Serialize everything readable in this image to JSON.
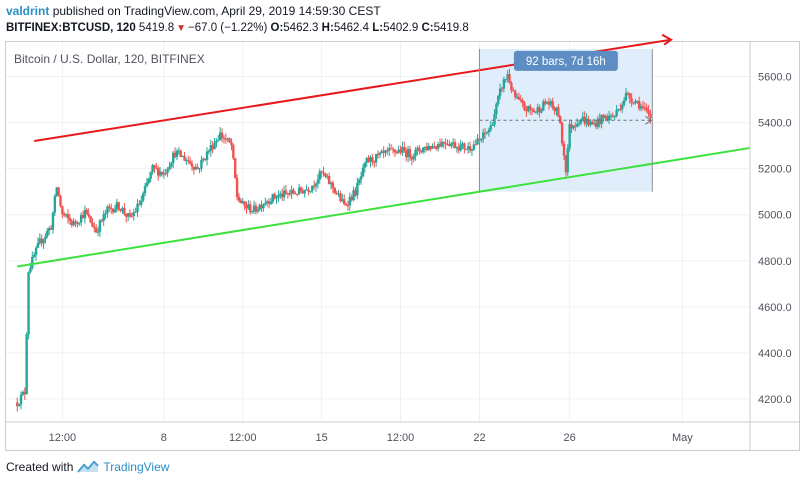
{
  "header": {
    "user": "valdrint",
    "published": "published on TradingView.com, April 29, 2019 14:59:30 CEST",
    "symbol": "BITFINEX:BTCUSD, 120",
    "last": "5419.8",
    "change": "−67.0 (−1.22%)",
    "open_label": "O:",
    "open": "5462.3",
    "high_label": "H:",
    "high": "5462.4",
    "low_label": "L:",
    "low": "5402.9",
    "close_label": "C:",
    "close": "5419.8"
  },
  "chart_title": "Bitcoin / U.S. Dollar, 120, BITFINEX",
  "measure_label": "92 bars, 7d 16h",
  "footer": {
    "created_with": "Created with",
    "brand": "TradingView"
  },
  "colors": {
    "up": "#26a69a",
    "down": "#ef5350",
    "upper_trend": "#e8191c",
    "lower_trend": "#3ce23c",
    "measure_bg": "#d6e8fb",
    "measure_label_bg": "#5e8dc4"
  },
  "chart_data": {
    "type": "candlestick",
    "title": "Bitcoin / U.S. Dollar, 120, BITFINEX",
    "x_domain": [
      "2019-04-01T00:00",
      "2019-05-04T00:00"
    ],
    "y_range": [
      4100,
      5750
    ],
    "y_ticks": [
      4200,
      4400,
      4600,
      4800,
      5000,
      5200,
      5400,
      5600
    ],
    "x_ticks": [
      {
        "label": "12:00",
        "t": "2019-04-03T12:00"
      },
      {
        "label": "8",
        "t": "2019-04-08T00:00"
      },
      {
        "label": "12:00",
        "t": "2019-04-11T12:00"
      },
      {
        "label": "15",
        "t": "2019-04-15T00:00"
      },
      {
        "label": "12:00",
        "t": "2019-04-18T12:00"
      },
      {
        "label": "22",
        "t": "2019-04-22T00:00"
      },
      {
        "label": "26",
        "t": "2019-04-26T00:00"
      },
      {
        "label": "May",
        "t": "2019-05-01T00:00"
      }
    ],
    "price_path": [
      [
        "2019-04-01T12:00",
        4185
      ],
      [
        "2019-04-01T20:00",
        4230
      ],
      [
        "2019-04-02T00:00",
        4760
      ],
      [
        "2019-04-02T12:00",
        4880
      ],
      [
        "2019-04-03T00:00",
        4950
      ],
      [
        "2019-04-03T06:00",
        5120
      ],
      [
        "2019-04-03T12:00",
        5000
      ],
      [
        "2019-04-04T00:00",
        4960
      ],
      [
        "2019-04-04T12:00",
        5010
      ],
      [
        "2019-04-05T00:00",
        4930
      ],
      [
        "2019-04-05T12:00",
        5020
      ],
      [
        "2019-04-06T00:00",
        5040
      ],
      [
        "2019-04-06T12:00",
        4980
      ],
      [
        "2019-04-07T00:00",
        5060
      ],
      [
        "2019-04-07T12:00",
        5200
      ],
      [
        "2019-04-08T00:00",
        5180
      ],
      [
        "2019-04-08T12:00",
        5270
      ],
      [
        "2019-04-09T00:00",
        5240
      ],
      [
        "2019-04-09T12:00",
        5200
      ],
      [
        "2019-04-10T00:00",
        5280
      ],
      [
        "2019-04-10T12:00",
        5350
      ],
      [
        "2019-04-11T00:00",
        5300
      ],
      [
        "2019-04-11T06:00",
        5080
      ],
      [
        "2019-04-11T12:00",
        5040
      ],
      [
        "2019-04-12T00:00",
        5020
      ],
      [
        "2019-04-12T12:00",
        5060
      ],
      [
        "2019-04-13T00:00",
        5080
      ],
      [
        "2019-04-13T12:00",
        5090
      ],
      [
        "2019-04-14T00:00",
        5100
      ],
      [
        "2019-04-14T12:00",
        5120
      ],
      [
        "2019-04-15T00:00",
        5180
      ],
      [
        "2019-04-15T12:00",
        5120
      ],
      [
        "2019-04-16T00:00",
        5040
      ],
      [
        "2019-04-16T12:00",
        5100
      ],
      [
        "2019-04-17T00:00",
        5230
      ],
      [
        "2019-04-17T12:00",
        5250
      ],
      [
        "2019-04-18T00:00",
        5270
      ],
      [
        "2019-04-18T12:00",
        5280
      ],
      [
        "2019-04-19T00:00",
        5260
      ],
      [
        "2019-04-19T12:00",
        5290
      ],
      [
        "2019-04-20T00:00",
        5300
      ],
      [
        "2019-04-20T12:00",
        5320
      ],
      [
        "2019-04-21T00:00",
        5300
      ],
      [
        "2019-04-21T12:00",
        5290
      ],
      [
        "2019-04-22T00:00",
        5320
      ],
      [
        "2019-04-22T12:00",
        5380
      ],
      [
        "2019-04-23T00:00",
        5560
      ],
      [
        "2019-04-23T06:00",
        5610
      ],
      [
        "2019-04-23T12:00",
        5520
      ],
      [
        "2019-04-24T00:00",
        5460
      ],
      [
        "2019-04-24T12:00",
        5450
      ],
      [
        "2019-04-25T00:00",
        5490
      ],
      [
        "2019-04-25T12:00",
        5440
      ],
      [
        "2019-04-25T20:00",
        5200
      ],
      [
        "2019-04-26T00:00",
        5380
      ],
      [
        "2019-04-26T12:00",
        5420
      ],
      [
        "2019-04-27T00:00",
        5390
      ],
      [
        "2019-04-27T12:00",
        5420
      ],
      [
        "2019-04-28T00:00",
        5430
      ],
      [
        "2019-04-28T12:00",
        5520
      ],
      [
        "2019-04-29T00:00",
        5490
      ],
      [
        "2019-04-29T14:00",
        5420
      ]
    ],
    "trendlines": [
      {
        "color": "upper_trend",
        "from": [
          "2019-04-02T06:00",
          5320
        ],
        "to": [
          "2019-04-30T12:00",
          5760
        ]
      },
      {
        "color": "lower_trend",
        "from": [
          "2019-04-01T12:00",
          4775
        ],
        "to": [
          "2019-05-04T00:00",
          5290
        ]
      }
    ],
    "measure": {
      "from": [
        "2019-04-22T00:00",
        5100
      ],
      "to": [
        "2019-04-29T16:00",
        5720
      ],
      "level": 5410
    }
  }
}
